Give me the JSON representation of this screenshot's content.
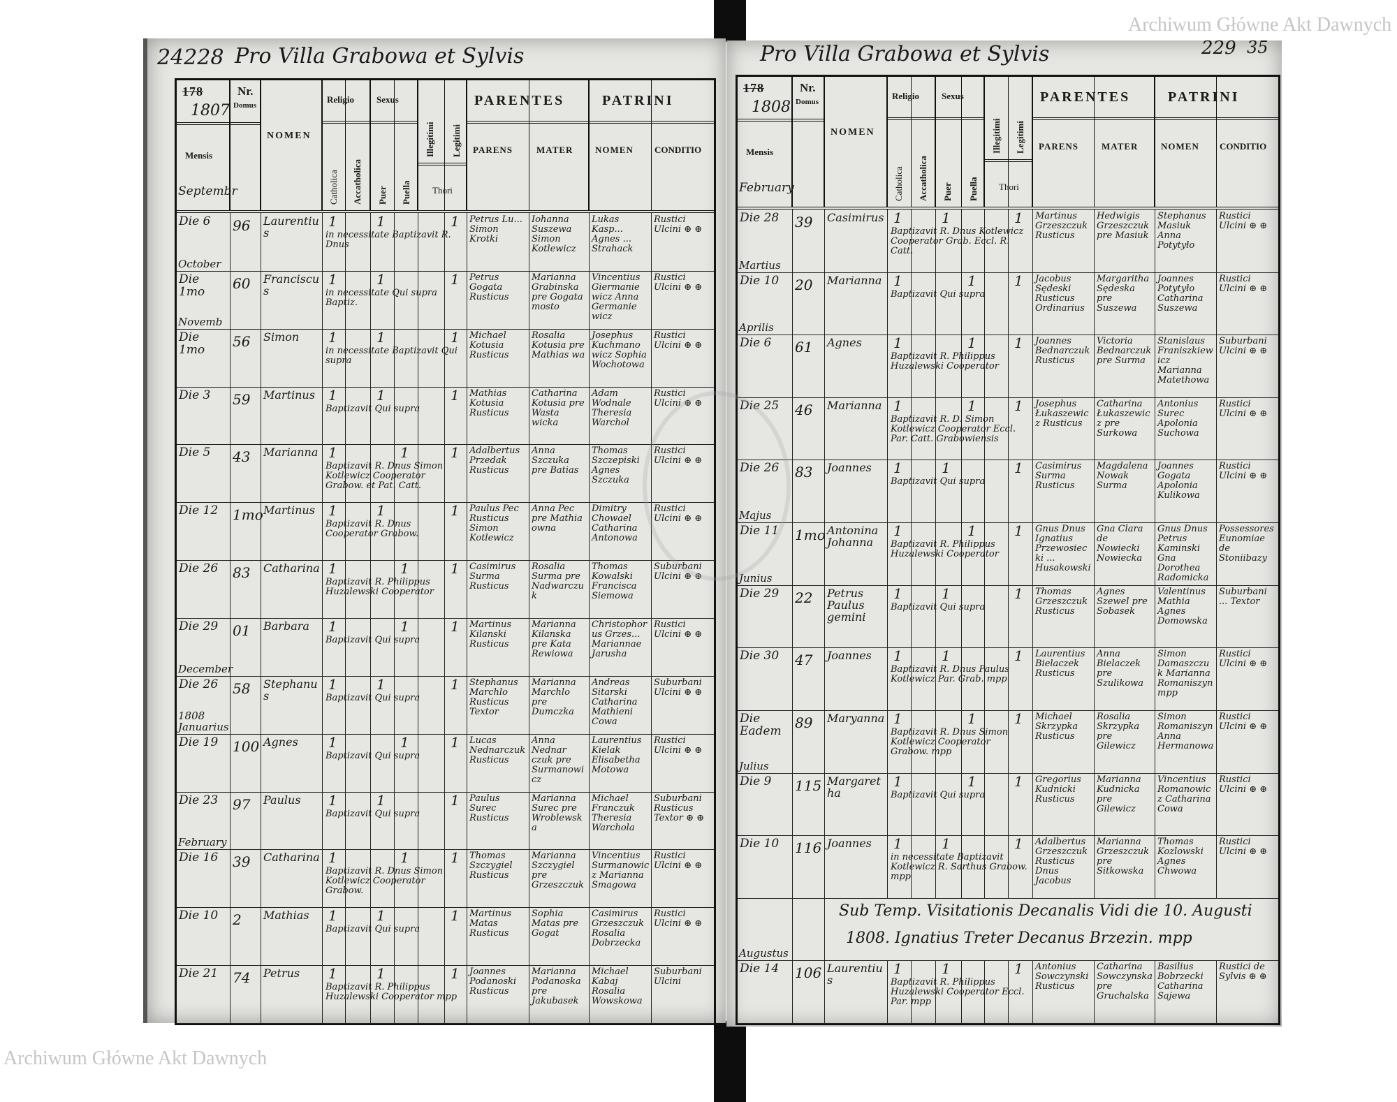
{
  "watermark": "Archiwum Główne Akt Dawnych",
  "header": {
    "mensis": "Mensis",
    "nr": "Nr.",
    "domus": "Domus",
    "nomen": "NOMEN",
    "religio": "Religio",
    "sexus": "Sexus",
    "catholica": "Catholica",
    "acatholica": "Accatholica",
    "puer": "Puer",
    "puella": "Puella",
    "illegitimi": "Illegitimi",
    "legitimi": "Legitimi",
    "thori": "Thori",
    "parentes": "PARENTES",
    "patrini": "PATRINI",
    "parens": "PARENS",
    "mater": "MATER",
    "patrini_nomen": "NOMEN",
    "conditio": "CONDITIO"
  },
  "left_page": {
    "archive_number": "24228",
    "title": "Pro Villa Grabowa et Sylvis",
    "year_printed": "178",
    "year_written": "1807",
    "first_month": "Septembr",
    "rows": [
      {
        "date": "Die 6",
        "nr": "96",
        "name": "Laurentius",
        "sex": "puer",
        "note": "in necessitate Baptizavit R. Dnus",
        "parens": "Petrus Lu... Simon Krotki",
        "mater": "Iohanna Suszewa Simon Kotlewicz",
        "patrinus": "Lukas Kasp... Agnes ... Strahack",
        "conditio": "Rustici Ulcini ⊕ ⊕",
        "month_after": "October"
      },
      {
        "date": "Die 1mo",
        "nr": "60",
        "name": "Franciscus",
        "sex": "puer",
        "note": "in necessitate Qui supra Baptiz.",
        "parens": "Petrus Gogata Rusticus",
        "mater": "Marianna Grabinska pre Gogata mosto",
        "patrinus": "Vincentius Giermanie wicz Anna Germanie wicz",
        "conditio": "Rustici Ulcini ⊕ ⊕",
        "month_after": "Novemb"
      },
      {
        "date": "Die 1mo",
        "nr": "56",
        "name": "Simon",
        "sex": "puer",
        "note": "in necessitate Baptizavit Qui supra",
        "parens": "Michael Kotusia Rusticus",
        "mater": "Rosalia Kotusia pre Mathias wa",
        "patrinus": "Josephus Kuchmano wicz Sophia Wochotowa",
        "conditio": "Rustici Ulcini ⊕ ⊕",
        "month_after": ""
      },
      {
        "date": "Die 3",
        "nr": "59",
        "name": "Martinus",
        "sex": "puer",
        "note": "Baptizavit Qui supra",
        "parens": "Mathias Kotusia Rusticus",
        "mater": "Catharina Kotusia pre Wasta wicka",
        "patrinus": "Adam Wodnale Theresia Warchol",
        "conditio": "Rustici Ulcini ⊕ ⊕",
        "month_after": ""
      },
      {
        "date": "Die 5",
        "nr": "43",
        "name": "Marianna",
        "sex": "puella",
        "note": "Baptizavit R. Dnus Simon Kotlewicz Cooperator Grabow. et Pat. Catt.",
        "parens": "Adalbertus Przedak Rusticus",
        "mater": "Anna Szczuka pre Batias",
        "patrinus": "Thomas Szczepiski Agnes Szczuka",
        "conditio": "Rustici Ulcini ⊕ ⊕",
        "month_after": ""
      },
      {
        "date": "Die 12",
        "nr": "1mo",
        "name": "Martinus",
        "sex": "puer",
        "note": "Baptizavit R. Dnus Cooperator Grabow.",
        "parens": "Paulus Pec Rusticus Simon Kotlewicz",
        "mater": "Anna Pec pre Mathia owna",
        "patrinus": "Dimitry Chowael Catharina Antonowa",
        "conditio": "Rustici Ulcini ⊕ ⊕",
        "month_after": ""
      },
      {
        "date": "Die 26",
        "nr": "83",
        "name": "Catharina",
        "sex": "puella",
        "note": "Baptizavit R. Philippus Huzalewski Cooperator",
        "parens": "Casimirus Surma Rusticus",
        "mater": "Rosalia Surma pre Nadwarczuk",
        "patrinus": "Thomas Kowalski Francisca Siemowa",
        "conditio": "Suburbani Ulcini ⊕ ⊕",
        "month_after": ""
      },
      {
        "date": "Die 29",
        "nr": "01",
        "name": "Barbara",
        "sex": "puella",
        "note": "Baptizavit Qui supra",
        "parens": "Martinus Kilanski Rusticus",
        "mater": "Marianna Kilanska pre Kata Rewiowa",
        "patrinus": "Christophorus Grzes... Mariannae Jarusha",
        "conditio": "Rustici Ulcini ⊕ ⊕",
        "month_after": "December"
      },
      {
        "date": "Die 26",
        "nr": "58",
        "name": "Stephanus",
        "sex": "puer",
        "note": "Baptizavit Qui supra",
        "parens": "Stephanus Marchlo Rusticus Textor",
        "mater": "Marianna Marchlo pre Dumczka",
        "patrinus": "Andreas Sitarski Catharina Mathieni Cowa",
        "conditio": "Suburbani Ulcini ⊕ ⊕",
        "month_after": "1808 Januarius"
      },
      {
        "date": "Die 19",
        "nr": "100",
        "name": "Agnes",
        "sex": "puella",
        "note": "Baptizavit Qui supra",
        "parens": "Lucas Nednarczuk Rusticus",
        "mater": "Anna Nednar czuk pre Surmanowicz",
        "patrinus": "Laurentius Kielak Elisabetha Motowa",
        "conditio": "Rustici Ulcini ⊕ ⊕",
        "month_after": ""
      },
      {
        "date": "Die 23",
        "nr": "97",
        "name": "Paulus",
        "sex": "puer",
        "note": "Baptizavit Qui supra",
        "parens": "Paulus Surec Rusticus",
        "mater": "Marianna Surec pre Wroblewska",
        "patrinus": "Michael Franczuk Theresia Warchola",
        "conditio": "Suburbani Rusticus Textor ⊕ ⊕",
        "month_after": "February"
      },
      {
        "date": "Die 16",
        "nr": "39",
        "name": "Catharina",
        "sex": "puella",
        "note": "Baptizavit R. Dnus Simon Kotlewicz Cooperator Grabow.",
        "parens": "Thomas Szczygiel Rusticus",
        "mater": "Marianna Szczygiel pre Grzeszczuk",
        "patrinus": "Vincentius Surmanowicz Marianna Smagowa",
        "conditio": "Rustici Ulcini ⊕ ⊕",
        "month_after": ""
      },
      {
        "date": "Die 10",
        "nr": "2",
        "name": "Mathias",
        "sex": "puer",
        "note": "Baptizavit Qui supra",
        "parens": "Martinus Matas Rusticus",
        "mater": "Sophia Matas pre Gogat",
        "patrinus": "Casimirus Grzeszczuk Rosalia Dobrzecka",
        "conditio": "Rustici Ulcini ⊕ ⊕",
        "month_after": ""
      },
      {
        "date": "Die 21",
        "nr": "74",
        "name": "Petrus",
        "sex": "puer",
        "note": "Baptizavit R. Philippus Huzalewski Cooperator mpp",
        "parens": "Joannes Podanoski Rusticus",
        "mater": "Marianna Podanoska pre Jakubasek",
        "patrinus": "Michael Kabaj Rosalia Wowskowa",
        "conditio": "Suburbani Ulcini",
        "month_after": ""
      }
    ]
  },
  "right_page": {
    "title": "Pro Villa Grabowa et Sylvis",
    "page_number": "229",
    "page_number_alt": "35",
    "year_printed": "178",
    "year_written": "1808",
    "first_month": "February",
    "rows": [
      {
        "date": "Die 28",
        "nr": "39",
        "name": "Casimirus",
        "sex": "puer",
        "note": "Baptizavit R. Dnus Kotlewicz Cooperator Grab. Eccl. R. Catt.",
        "parens": "Martinus Grzeszczuk Rusticus",
        "mater": "Hedwigis Grzeszczuk pre Masiuk",
        "patrinus": "Stephanus Masiuk Anna Potytyło",
        "conditio": "Rustici Ulcini ⊕ ⊕",
        "month_after": "Martius"
      },
      {
        "date": "Die 10",
        "nr": "20",
        "name": "Marianna",
        "sex": "puella",
        "note": "Baptizavit Qui supra",
        "parens": "Jacobus Sędeski Rusticus Ordinarius",
        "mater": "Margaritha Sędeska pre Suszewa",
        "patrinus": "Joannes Potytyło Catharina Suszewa",
        "conditio": "Rustici Ulcini ⊕ ⊕",
        "month_after": "Aprilis"
      },
      {
        "date": "Die 6",
        "nr": "61",
        "name": "Agnes",
        "sex": "puella",
        "note": "Baptizavit R. Philippus Huzalewski Cooperator",
        "parens": "Joannes Bednarczuk Rusticus",
        "mater": "Victoria Bednarczuk pre Surma",
        "patrinus": "Stanislaus Franiszkiewicz Marianna Matethowa",
        "conditio": "Suburbani Ulcini ⊕ ⊕",
        "month_after": ""
      },
      {
        "date": "Die 25",
        "nr": "46",
        "name": "Marianna",
        "sex": "puella",
        "note": "Baptizavit R. D. Simon Kotlewicz Cooperator Eccl. Par. Catt. Grabowiensis",
        "parens": "Josephus Łukaszewicz Rusticus",
        "mater": "Catharina Łukaszewicz pre Surkowa",
        "patrinus": "Antonius Surec Apolonia Suchowa",
        "conditio": "Rustici Ulcini ⊕ ⊕",
        "month_after": ""
      },
      {
        "date": "Die 26",
        "nr": "83",
        "name": "Joannes",
        "sex": "puer",
        "note": "Baptizavit Qui supra",
        "parens": "Casimirus Surma Rusticus",
        "mater": "Magdalena Nowak Surma",
        "patrinus": "Joannes Gogata Apolonia Kulikowa",
        "conditio": "Rustici Ulcini ⊕ ⊕",
        "month_after": "Majus"
      },
      {
        "date": "Die 11",
        "nr": "1mo",
        "name": "Antonina Johanna",
        "sex": "puella",
        "note": "Baptizavit R. Philippus Huzalewski Cooperator",
        "parens": "Gnus Dnus Ignatius Przewosiecki ... Husakowski",
        "mater": "Gna Clara de Nowiecki Nowiecka",
        "patrinus": "Gnus Dnus Petrus Kaminski Gna Dorothea Radomicka",
        "conditio": "Possessores Eunomiae de Stoniibazy",
        "month_after": "Junius"
      },
      {
        "date": "Die 29",
        "nr": "22",
        "name": "Petrus Paulus gemini",
        "sex": "puer",
        "note": "Baptizavit Qui supra",
        "parens": "Thomas Grzeszczuk Rusticus",
        "mater": "Agnes Szewel pre Sobasek",
        "patrinus": "Valentinus Mathia Agnes Domowska",
        "conditio": "Suburbani ... Textor",
        "month_after": ""
      },
      {
        "date": "Die 30",
        "nr": "47",
        "name": "Joannes",
        "sex": "puer",
        "note": "Baptizavit R. Dnus Paulus Kotlewicz Par. Grab. mpp",
        "parens": "Laurentius Bielaczek Rusticus",
        "mater": "Anna Bielaczek pre Szulikowa",
        "patrinus": "Simon Damaszczuk Marianna Romaniszyn mpp",
        "conditio": "Rustici Ulcini ⊕ ⊕",
        "month_after": ""
      },
      {
        "date": "Die Eadem",
        "nr": "89",
        "name": "Maryanna",
        "sex": "puella",
        "note": "Baptizavit R. Dnus Simon Kotlewicz Cooperator Grabow. mpp",
        "parens": "Michael Skrzypka Rusticus",
        "mater": "Rosalia Skrzypka pre Gilewicz",
        "patrinus": "Simon Romaniszyn Anna Hermanowa",
        "conditio": "Rustici Ulcini ⊕ ⊕",
        "month_after": "Julius"
      },
      {
        "date": "Die 9",
        "nr": "115",
        "name": "Margaretha",
        "sex": "puella",
        "note": "Baptizavit Qui supra",
        "parens": "Gregorius Kudnicki Rusticus",
        "mater": "Marianna Kudnicka pre Gilewicz",
        "patrinus": "Vincentius Romanowicz Catharina Cowa",
        "conditio": "Rustici Ulcini ⊕ ⊕",
        "month_after": ""
      },
      {
        "date": "Die 10",
        "nr": "116",
        "name": "Joannes",
        "sex": "puer",
        "note": "in necessitate Baptizavit Kotlewicz R. Sarthus Grabow. mpp",
        "parens": "Adalbertus Grzeszczuk Rusticus Dnus Jacobus",
        "mater": "Marianna Grzeszczuk pre Sitkowska",
        "patrinus": "Thomas Kozlowski Agnes Chwowa",
        "conditio": "Rustici Ulcini ⊕ ⊕",
        "month_after": ""
      },
      {
        "visitation": true,
        "line1": "Sub Temp. Visitationis Decanalis Vidi die 10. Augusti",
        "line2": "1808. Ignatius Treter Decanus Brzezin. mpp",
        "month_after": "Augustus"
      },
      {
        "date": "Die 14",
        "nr": "106",
        "name": "Laurentius",
        "sex": "puer",
        "note": "Baptizavit R. Philippus Huzalewski Cooperator Eccl. Par. mpp",
        "parens": "Antonius Sowczynski Rusticus",
        "mater": "Catharina Sowczynska pre Gruchalska",
        "patrinus": "Basilius Bobrzecki Catharina Sajewa",
        "conditio": "Rustici de Sylvis ⊕ ⊕",
        "month_after": ""
      }
    ]
  }
}
